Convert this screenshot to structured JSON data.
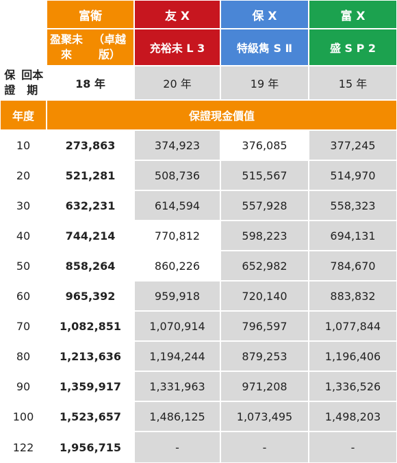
{
  "colors": {
    "orange": "#f38b00",
    "red": "#c7161f",
    "blue": "#4a86d6",
    "green": "#1ca24f",
    "grey": "#d9d9d9"
  },
  "header": {
    "companies": [
      "富衛",
      "友 X",
      "保 X",
      "富 X"
    ],
    "products": [
      "盈聚未來\n（卓越版）",
      "充裕未 L 3",
      "特級雋 S Ⅱ",
      "盛 S P 2"
    ],
    "term_label": "保證\n回本期",
    "terms": [
      "18 年",
      "20 年",
      "19 年",
      "15 年"
    ],
    "year_label": "年度",
    "section_title": "保證現金價值"
  },
  "rows": [
    {
      "year": "10",
      "values": [
        "273,863",
        "374,923",
        "376,085",
        "377,245"
      ]
    },
    {
      "year": "20",
      "values": [
        "521,281",
        "508,736",
        "515,567",
        "514,970"
      ]
    },
    {
      "year": "30",
      "values": [
        "632,231",
        "614,594",
        "557,928",
        "558,323"
      ]
    },
    {
      "year": "40",
      "values": [
        "744,214",
        "770,812",
        "598,223",
        "694,131"
      ]
    },
    {
      "year": "50",
      "values": [
        "858,264",
        "860,226",
        "652,982",
        "784,670"
      ]
    },
    {
      "year": "60",
      "values": [
        "965,392",
        "959,918",
        "720,140",
        "883,832"
      ]
    },
    {
      "year": "70",
      "values": [
        "1,082,851",
        "1,070,914",
        "796,597",
        "1,077,844"
      ]
    },
    {
      "year": "80",
      "values": [
        "1,213,636",
        "1,194,244",
        "879,253",
        "1,196,406"
      ]
    },
    {
      "year": "90",
      "values": [
        "1,359,917",
        "1,331,963",
        "971,208",
        "1,336,526"
      ]
    },
    {
      "year": "100",
      "values": [
        "1,523,657",
        "1,486,125",
        "1,073,495",
        "1,498,203"
      ]
    },
    {
      "year": "122",
      "values": [
        "1,956,715",
        "-",
        "-",
        "-"
      ]
    }
  ],
  "shade": [
    [
      "white",
      "grey",
      "white",
      "grey"
    ],
    [
      "white",
      "grey",
      "grey",
      "grey"
    ],
    [
      "white",
      "grey",
      "grey",
      "grey"
    ],
    [
      "white",
      "white",
      "grey",
      "grey"
    ],
    [
      "white",
      "white",
      "grey",
      "grey"
    ],
    [
      "white",
      "grey",
      "grey",
      "grey"
    ],
    [
      "white",
      "grey",
      "grey",
      "grey"
    ],
    [
      "white",
      "grey",
      "grey",
      "grey"
    ],
    [
      "white",
      "grey",
      "grey",
      "grey"
    ],
    [
      "white",
      "grey",
      "grey",
      "grey"
    ],
    [
      "white",
      "grey",
      "grey",
      "grey"
    ]
  ]
}
